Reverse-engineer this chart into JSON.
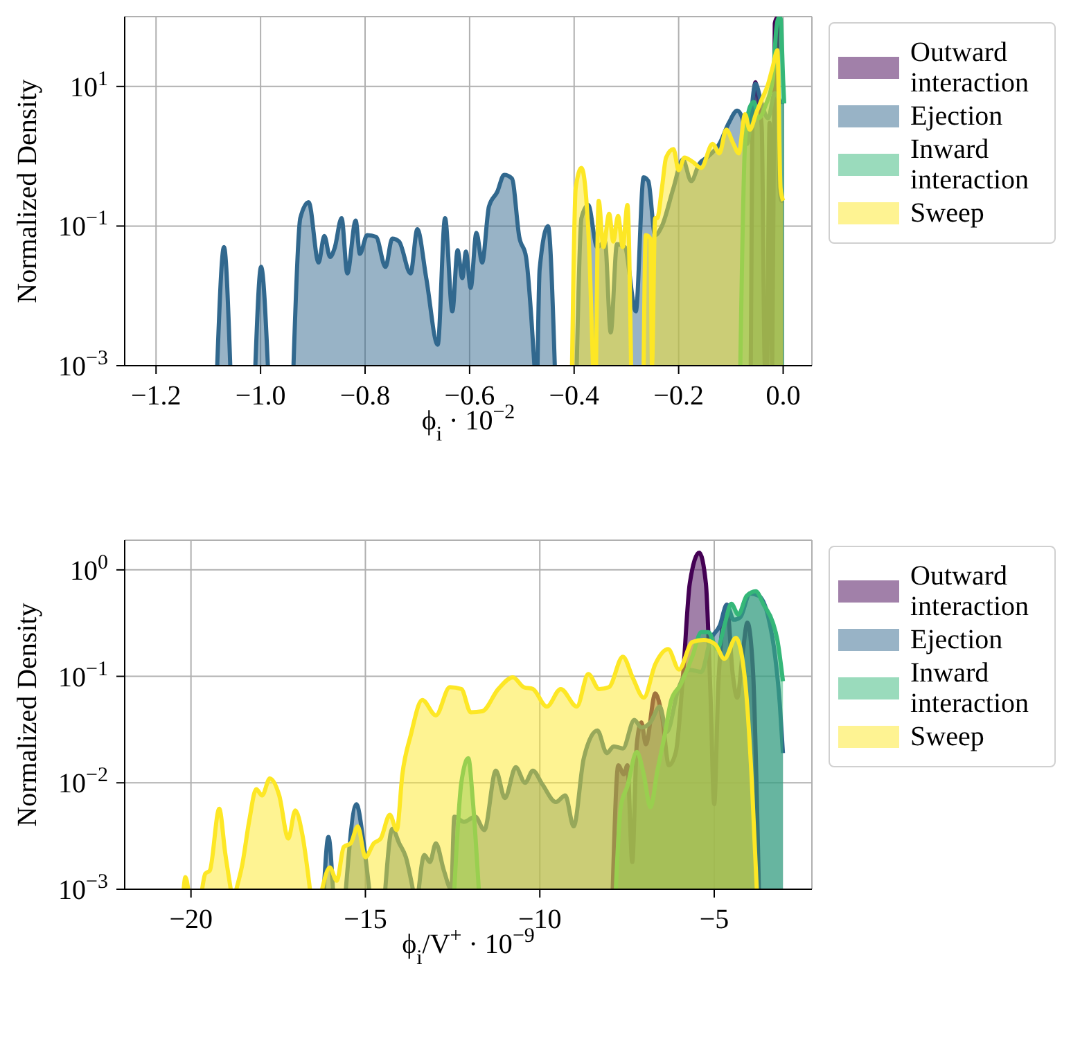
{
  "chart_data": [
    {
      "type": "area",
      "xlabel": "ϕ$_{i}$ · 10$^{−2}$",
      "ylabel": "Normalized Density",
      "log": "y",
      "grid": true,
      "legend": "right",
      "xlim": [
        -1.26,
        0.055
      ],
      "ylim": [
        0.001,
        100
      ],
      "xticks": [
        {
          "value": -1.2,
          "label": "−1.2"
        },
        {
          "value": -1.0,
          "label": "−1.0"
        },
        {
          "value": -0.8,
          "label": "−0.8"
        },
        {
          "value": -0.6,
          "label": "−0.6"
        },
        {
          "value": -0.4,
          "label": "−0.4"
        },
        {
          "value": -0.2,
          "label": "−0.2"
        },
        {
          "value": 0.0,
          "label": "0.0"
        }
      ],
      "yticks": [
        {
          "value": 0.001,
          "label": "10$^{−3}$"
        },
        {
          "value": 0.1,
          "label": "10$^{−1}$"
        },
        {
          "value": 10,
          "label": "10$^{1}$"
        }
      ],
      "series": [
        {
          "name": "Outward interaction",
          "color": "#440154",
          "x": [
            -0.062,
            -0.059,
            -0.053,
            -0.047,
            -0.041,
            -0.035,
            -0.031,
            -0.026,
            -0.021,
            -0.016,
            -0.012,
            -0.007,
            -0.003,
            0.0
          ],
          "values": [
            0.001,
            3,
            11.5,
            6,
            2.6,
            0.001,
            0.001,
            3,
            0.001,
            80,
            95,
            0.35,
            0.23,
            0.23
          ]
        },
        {
          "name": "Ejection",
          "color": "#31688e",
          "x": [
            -1.083,
            -1.07,
            -1.058,
            -1.04,
            -1.01,
            -0.999,
            -0.986,
            -0.96,
            -0.937,
            -0.924,
            -0.908,
            -0.889,
            -0.878,
            -0.867,
            -0.858,
            -0.845,
            -0.834,
            -0.818,
            -0.81,
            -0.796,
            -0.779,
            -0.761,
            -0.748,
            -0.735,
            -0.713,
            -0.7,
            -0.683,
            -0.661,
            -0.647,
            -0.633,
            -0.623,
            -0.614,
            -0.607,
            -0.598,
            -0.587,
            -0.576,
            -0.563,
            -0.547,
            -0.534,
            -0.519,
            -0.505,
            -0.492,
            -0.482,
            -0.476,
            -0.473,
            -0.47,
            -0.466,
            -0.45,
            -0.437,
            -0.42,
            -0.395,
            -0.386,
            -0.373,
            -0.356,
            -0.341,
            -0.33,
            -0.318,
            -0.303,
            -0.282,
            -0.267,
            -0.258,
            -0.245,
            -0.232,
            -0.21,
            -0.192,
            -0.176,
            -0.161,
            -0.143,
            -0.122,
            -0.104,
            -0.088,
            -0.078,
            -0.069,
            -0.053,
            -0.042,
            -0.029,
            -0.016,
            -0.003,
            0.002
          ],
          "values": [
            0.001,
            0.05,
            0.001,
            null,
            0.001,
            0.026,
            0.001,
            null,
            0.001,
            0.13,
            0.22,
            0.03,
            0.072,
            0.036,
            0.049,
            0.13,
            0.021,
            0.12,
            0.04,
            0.074,
            0.07,
            0.026,
            0.066,
            0.06,
            0.021,
            0.09,
            0.018,
            0.002,
            0.13,
            0.006,
            0.045,
            0.018,
            0.043,
            0.013,
            0.08,
            0.03,
            0.19,
            0.31,
            0.54,
            0.48,
            0.07,
            0.036,
            0.005,
            0.001,
            null,
            0.001,
            0.024,
            0.1,
            0.001,
            null,
            0.001,
            0.13,
            0.2,
            0.05,
            0.06,
            0.003,
            0.055,
            0.05,
            0.006,
            0.5,
            0.44,
            0.074,
            0.1,
            0.35,
            0.9,
            0.44,
            0.77,
            1,
            1.5,
            3,
            4.5,
            3.5,
            1.5,
            11,
            6,
            3.5,
            8,
            6,
            6
          ]
        },
        {
          "name": "Inward interaction",
          "color": "#35b779",
          "x": [
            -0.082,
            -0.073,
            -0.064,
            -0.056,
            -0.047,
            -0.034,
            -0.02,
            -0.013,
            -0.009,
            -0.005,
            0.0,
            0.002
          ],
          "values": [
            0.001,
            1.5,
            5,
            6,
            3.5,
            5.3,
            12.5,
            68,
            95,
            95,
            12,
            5.7
          ]
        },
        {
          "name": "Sweep",
          "color": "#fde725",
          "x": [
            -0.404,
            -0.397,
            -0.386,
            -0.373,
            -0.364,
            -0.36,
            -0.358,
            -0.353,
            -0.344,
            -0.333,
            -0.325,
            -0.316,
            -0.307,
            -0.298,
            -0.291,
            -0.28,
            -0.267,
            -0.263,
            -0.254,
            -0.251,
            -0.245,
            -0.241,
            -0.232,
            -0.224,
            -0.21,
            -0.2,
            -0.189,
            -0.173,
            -0.157,
            -0.135,
            -0.122,
            -0.109,
            -0.095,
            -0.085,
            -0.073,
            -0.064,
            -0.051,
            -0.041,
            -0.029,
            -0.02,
            -0.011,
            -0.005,
            0.0
          ],
          "values": [
            0.001,
            0.35,
            0.68,
            0.09,
            0.001,
            null,
            0.001,
            0.23,
            0.05,
            0.15,
            0.06,
            0.14,
            0.05,
            0.2,
            0.001,
            null,
            0.001,
            0.074,
            0.066,
            0.001,
            0.13,
            0.13,
            0.35,
            0.96,
            1.27,
            0.63,
            0.96,
            0.83,
            0.68,
            1.5,
            1.1,
            2.4,
            1.5,
            1.1,
            4,
            2.4,
            4.3,
            6.5,
            10.7,
            19,
            33,
            0.35,
            0.23
          ]
        }
      ]
    },
    {
      "type": "area",
      "xlabel": "ϕ$_{i}$/V$^{+}$ · 10$^{−9}$",
      "ylabel": "Normalized Density",
      "log": "y",
      "grid": true,
      "legend": "right",
      "xlim": [
        -21.9,
        -2.2
      ],
      "ylim": [
        0.001,
        1.9
      ],
      "xticks": [
        {
          "value": -20,
          "label": "−20"
        },
        {
          "value": -15,
          "label": "−15"
        },
        {
          "value": -10,
          "label": "−10"
        },
        {
          "value": -5,
          "label": "−5"
        }
      ],
      "yticks": [
        {
          "value": 0.001,
          "label": "10$^{−3}$"
        },
        {
          "value": 0.01,
          "label": "10$^{−2}$"
        },
        {
          "value": 0.1,
          "label": "10$^{−1}$"
        },
        {
          "value": 1,
          "label": "10$^{0}$"
        }
      ],
      "series": [
        {
          "name": "Outward interaction",
          "color": "#440154",
          "x": [
            -7.91,
            -7.75,
            -7.59,
            -7.49,
            -7.35,
            -7.22,
            -7.09,
            -6.96,
            -6.69,
            -6.49,
            -6.3,
            -6.1,
            -5.9,
            -5.7,
            -5.43,
            -5.24,
            -5.11,
            -5.0,
            -4.88,
            -4.64,
            -4.47,
            -4.34,
            -4.18,
            -4.05,
            -3.89,
            -3.72
          ],
          "values": [
            0.001,
            0.0146,
            0.012,
            0.0146,
            0.0018,
            0.023,
            0.037,
            0.023,
            0.069,
            0.041,
            0.0146,
            0.0195,
            0.096,
            0.75,
            1.45,
            0.75,
            0.072,
            0.0063,
            0.087,
            0.47,
            0.105,
            0.063,
            0.17,
            0.32,
            0.115,
            0.001
          ]
        },
        {
          "name": "Ejection",
          "color": "#31688e",
          "x": [
            -16.19,
            -16.06,
            -15.93,
            -15.7,
            -15.56,
            -15.26,
            -15.05,
            -14.89,
            -14.6,
            -14.43,
            -14.23,
            -14.03,
            -13.84,
            -13.64,
            -13.55,
            -13.47,
            -13.31,
            -13.15,
            -12.98,
            -12.75,
            -12.54,
            -12.45,
            -12.18,
            -11.85,
            -11.59,
            -11.26,
            -11.0,
            -10.69,
            -10.42,
            -10.2,
            -9.93,
            -9.54,
            -9.27,
            -9.03,
            -8.74,
            -8.35,
            -8.08,
            -7.88,
            -7.62,
            -7.29,
            -7.09,
            -6.83,
            -6.56,
            -6.36,
            -6.03,
            -5.7,
            -5.37,
            -5.11,
            -4.84,
            -4.64,
            -4.44,
            -4.25,
            -3.98,
            -3.72,
            -3.45,
            -3.25,
            -3.12,
            -3.03
          ],
          "values": [
            0.001,
            0.0031,
            0.001,
            null,
            0.001,
            0.0063,
            0.0027,
            0.001,
            null,
            0.001,
            0.0037,
            0.0027,
            0.002,
            0.001,
            null,
            0.001,
            0.0021,
            0.0018,
            0.0027,
            0.0015,
            0.001,
            0.0048,
            0.0043,
            0.0048,
            0.0036,
            0.013,
            0.0072,
            0.014,
            0.01,
            0.013,
            0.0097,
            0.0066,
            0.0076,
            0.0039,
            0.017,
            0.031,
            0.019,
            0.022,
            0.021,
            0.039,
            0.033,
            0.037,
            0.052,
            0.03,
            0.076,
            0.115,
            0.11,
            0.22,
            0.3,
            0.47,
            0.34,
            0.36,
            0.6,
            0.57,
            0.36,
            0.15,
            0.055,
            0.019
          ]
        },
        {
          "name": "Inward interaction",
          "color": "#35b779",
          "x": [
            -12.45,
            -12.25,
            -12.05,
            -11.92,
            -11.75,
            -10.0,
            -7.82,
            -7.68,
            -7.49,
            -7.22,
            -7.02,
            -6.83,
            -6.63,
            -6.43,
            -6.23,
            -5.97,
            -5.63,
            -5.37,
            -5.17,
            -4.91,
            -4.71,
            -4.51,
            -4.31,
            -4.07,
            -3.81,
            -3.58,
            -3.32,
            -3.19,
            -3.03
          ],
          "values": [
            0.001,
            0.01,
            0.017,
            0.0068,
            0.001,
            null,
            0.001,
            0.0059,
            0.0093,
            0.0195,
            0.012,
            0.0059,
            0.013,
            0.027,
            0.06,
            0.083,
            0.153,
            0.26,
            0.26,
            0.18,
            0.3,
            0.48,
            0.38,
            0.57,
            0.63,
            0.47,
            0.32,
            0.22,
            0.09
          ]
        },
        {
          "name": "Sweep",
          "color": "#fde725",
          "x": [
            -20.21,
            -20.16,
            -20.08,
            -19.9,
            -19.68,
            -19.59,
            -19.46,
            -19.19,
            -19.02,
            -18.86,
            -18.8,
            -18.7,
            -18.53,
            -18.33,
            -18.13,
            -17.96,
            -17.74,
            -17.47,
            -17.21,
            -17.01,
            -16.81,
            -16.59,
            -16.4,
            -16.24,
            -16.02,
            -15.82,
            -15.62,
            -15.42,
            -15.22,
            -15.0,
            -14.76,
            -14.56,
            -14.3,
            -14.1,
            -13.94,
            -13.7,
            -13.37,
            -12.98,
            -12.58,
            -12.25,
            -11.98,
            -11.65,
            -11.19,
            -10.77,
            -10.46,
            -10.2,
            -9.8,
            -9.4,
            -8.94,
            -8.61,
            -8.3,
            -8.02,
            -7.62,
            -7.33,
            -7.02,
            -6.69,
            -6.32,
            -6.01,
            -5.63,
            -5.3,
            -4.97,
            -4.71,
            -4.38,
            -4.11,
            -3.92,
            -3.78
          ],
          "values": [
            0.001,
            0.0013,
            0.001,
            null,
            0.001,
            0.0014,
            0.0015,
            0.0057,
            0.0022,
            0.001,
            null,
            0.001,
            0.0017,
            0.0044,
            0.0087,
            0.0076,
            0.011,
            0.0076,
            0.003,
            0.0055,
            0.0033,
            0.001,
            null,
            0.001,
            0.0016,
            0.0012,
            0.0025,
            0.0027,
            0.0039,
            0.002,
            0.0027,
            0.003,
            0.005,
            0.0036,
            0.012,
            0.028,
            0.06,
            0.043,
            0.079,
            0.076,
            0.046,
            0.047,
            0.076,
            0.098,
            0.079,
            0.076,
            0.052,
            0.076,
            0.052,
            0.105,
            0.076,
            0.079,
            0.153,
            0.096,
            0.063,
            0.13,
            0.18,
            0.116,
            0.21,
            0.22,
            0.2,
            0.146,
            0.23,
            0.087,
            0.01,
            0.001
          ]
        }
      ]
    }
  ]
}
